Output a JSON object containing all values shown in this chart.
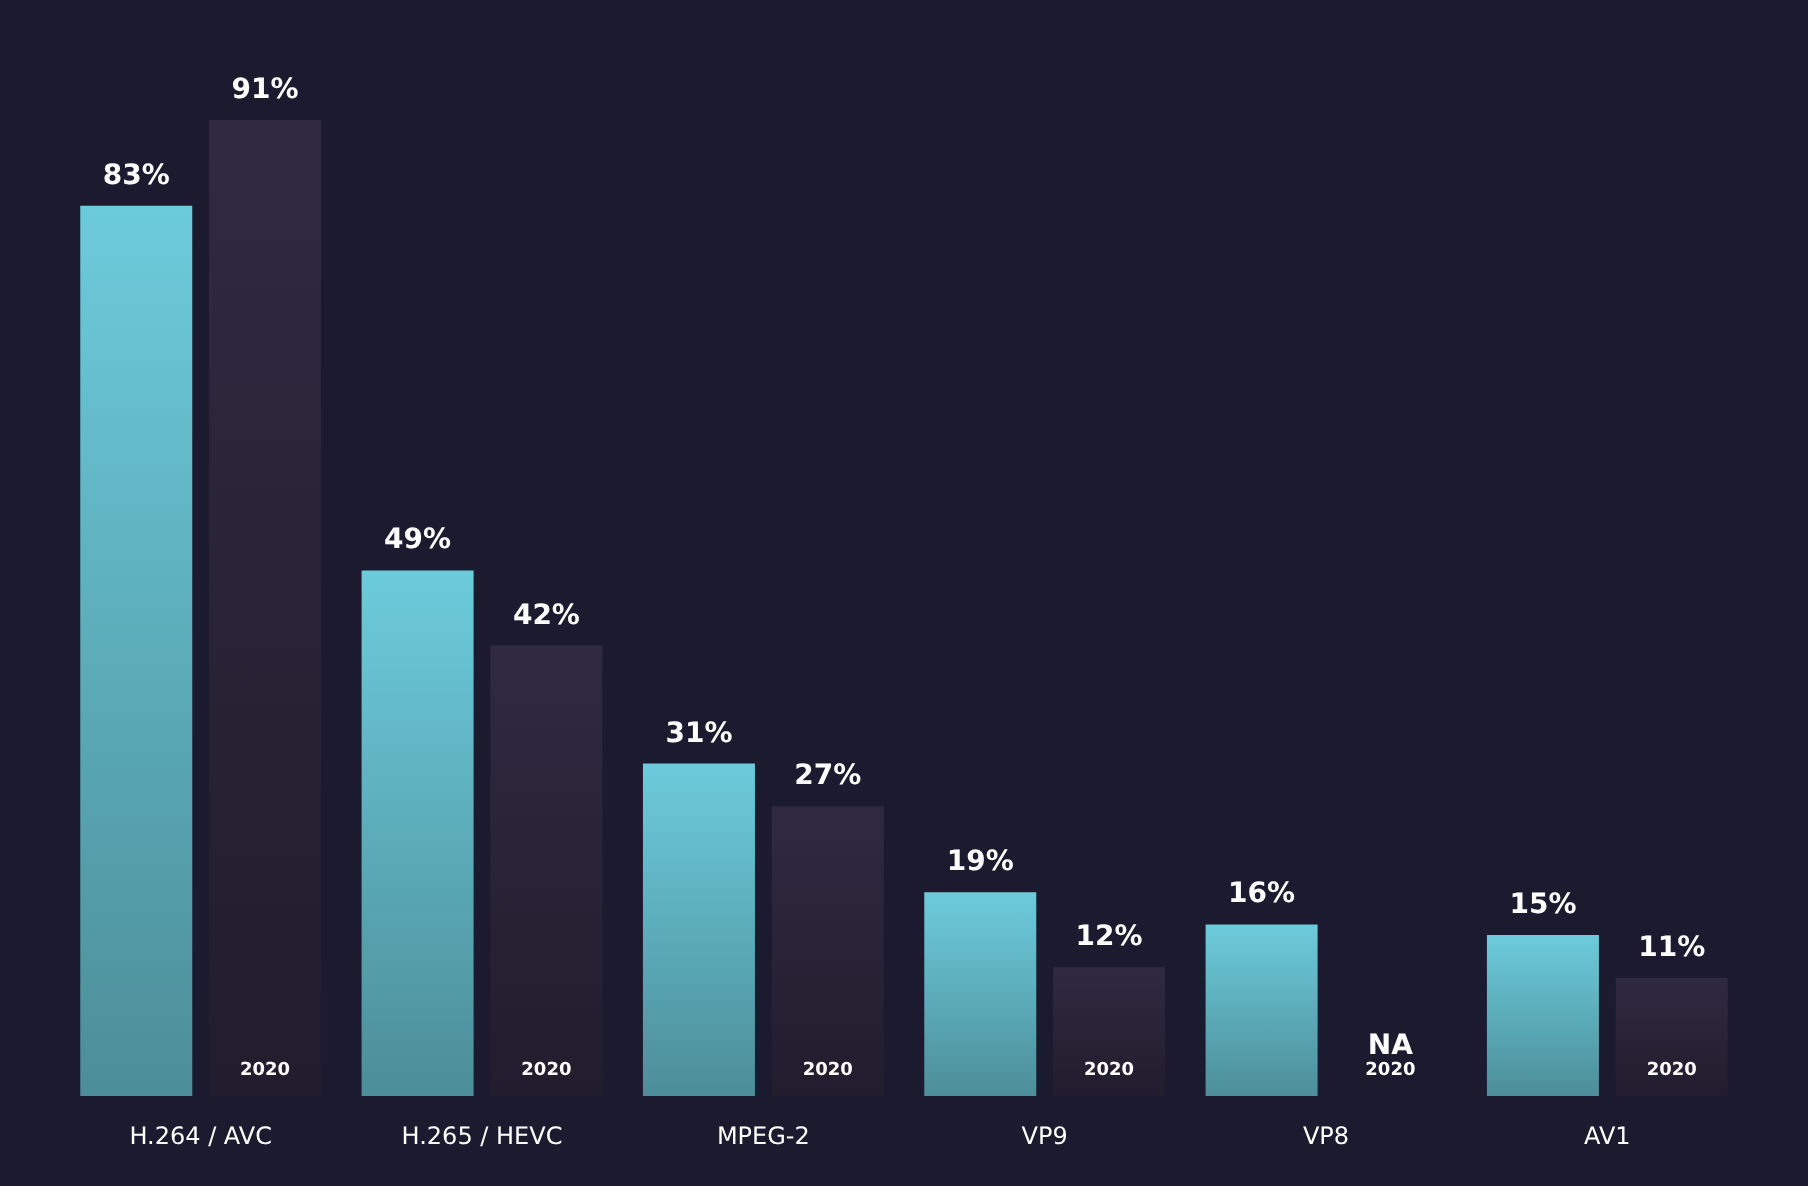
{
  "chart_data": {
    "type": "bar",
    "categories": [
      "H.264 / AVC",
      "H.265 / HEVC",
      "MPEG-2",
      "VP9",
      "VP8",
      "AV1"
    ],
    "series": [
      {
        "color": "#6ccbdb",
        "values": [
          83,
          49,
          31,
          19,
          16,
          15
        ],
        "value_labels": [
          "83%",
          "49%",
          "31%",
          "19%",
          "16%",
          "15%"
        ]
      },
      {
        "name": "2020",
        "color": "#2f2a40",
        "values": [
          91,
          42,
          27,
          12,
          null,
          11
        ],
        "value_labels": [
          "91%",
          "42%",
          "27%",
          "12%",
          "NA",
          "11%"
        ]
      }
    ]
  }
}
